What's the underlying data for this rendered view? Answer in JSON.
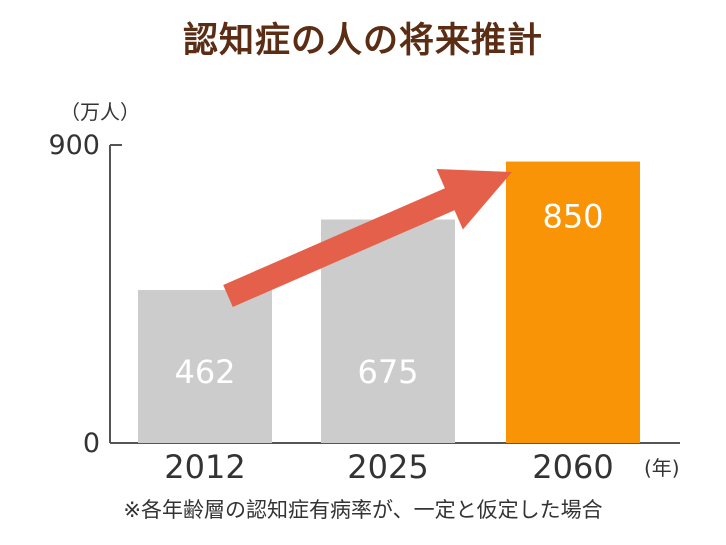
{
  "chart_data": {
    "type": "bar",
    "title": "認知症の人の将来推計",
    "categories": [
      "2012",
      "2025",
      "2060"
    ],
    "values": [
      462,
      675,
      850
    ],
    "y_unit": "（万人）",
    "x_unit": "(年)",
    "ylim": [
      0,
      900
    ],
    "y_ticks": [
      "0",
      "900"
    ],
    "data_labels": [
      "462",
      "675",
      "850"
    ],
    "grid": false,
    "bar_colors": [
      "#cccccc",
      "#cccccc",
      "#f89406"
    ],
    "arrow_color": "#e5604a",
    "note": "※各年齢層の認知症有病率が、一定と仮定した場合"
  }
}
